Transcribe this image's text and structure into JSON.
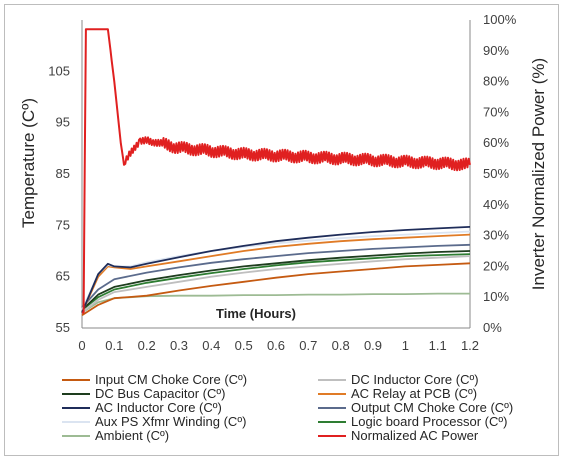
{
  "chart_data": {
    "type": "line",
    "xlabel": "Time (Hours)",
    "ylabel_left": "Temperature (Cº)",
    "ylabel_right": "Inverter Normalized Power (%)",
    "xlim": [
      0,
      1.2
    ],
    "ylim_left": [
      55,
      115
    ],
    "ylim_right": [
      0,
      100
    ],
    "x_ticks": [
      "0",
      "0.1",
      "0.2",
      "0.3",
      "0.4",
      "0.5",
      "0.6",
      "0.7",
      "0.8",
      "0.9",
      "1",
      "1.1",
      "1.2"
    ],
    "y_ticks_left": [
      "55",
      "65",
      "75",
      "85",
      "95",
      "105"
    ],
    "y_ticks_right": [
      "0%",
      "10%",
      "20%",
      "30%",
      "40%",
      "50%",
      "60%",
      "70%",
      "80%",
      "90%",
      "100%"
    ],
    "grid": false,
    "legend_position": "bottom",
    "series": [
      {
        "name": "Input CM Choke Core (Cº)",
        "color": "#c55a11",
        "axis": "left",
        "x": [
          0,
          0.05,
          0.1,
          0.2,
          0.3,
          0.4,
          0.5,
          0.6,
          0.7,
          0.8,
          0.9,
          1.0,
          1.1,
          1.2
        ],
        "y": [
          57.5,
          59.5,
          60.8,
          61.3,
          62.3,
          63.2,
          64.0,
          64.8,
          65.5,
          66.0,
          66.5,
          67.0,
          67.3,
          67.6
        ]
      },
      {
        "name": "DC Inductor Core (Cº)",
        "color": "#bfbfbf",
        "axis": "left",
        "x": [
          0,
          0.05,
          0.1,
          0.2,
          0.3,
          0.4,
          0.5,
          0.6,
          0.7,
          0.8,
          0.9,
          1.0,
          1.1,
          1.2
        ],
        "y": [
          58.0,
          60.5,
          62.0,
          63.0,
          64.0,
          65.0,
          65.8,
          66.5,
          67.0,
          67.5,
          68.0,
          68.4,
          68.7,
          69.0
        ]
      },
      {
        "name": "DC Bus Capacitor (Cº)",
        "color": "#1e3d1e",
        "axis": "left",
        "x": [
          0,
          0.05,
          0.1,
          0.2,
          0.3,
          0.4,
          0.5,
          0.6,
          0.7,
          0.8,
          0.9,
          1.0,
          1.1,
          1.2
        ],
        "y": [
          58.5,
          61.5,
          63.0,
          64.3,
          65.3,
          66.2,
          67.0,
          67.6,
          68.2,
          68.7,
          69.1,
          69.5,
          69.8,
          70.0
        ]
      },
      {
        "name": "AC Relay at PCB (Cº)",
        "color": "#e07b26",
        "axis": "left",
        "x": [
          0,
          0.05,
          0.08,
          0.1,
          0.15,
          0.2,
          0.3,
          0.4,
          0.5,
          0.6,
          0.7,
          0.8,
          0.9,
          1.0,
          1.1,
          1.2
        ],
        "y": [
          58.0,
          65.0,
          67.0,
          66.8,
          66.5,
          67.0,
          68.0,
          69.0,
          70.0,
          70.8,
          71.4,
          71.9,
          72.3,
          72.6,
          72.9,
          73.2
        ]
      },
      {
        "name": "AC Inductor Core (Cº)",
        "color": "#1f2d5a",
        "axis": "left",
        "x": [
          0,
          0.05,
          0.08,
          0.1,
          0.15,
          0.2,
          0.3,
          0.4,
          0.5,
          0.6,
          0.7,
          0.8,
          0.9,
          1.0,
          1.1,
          1.2
        ],
        "y": [
          58.0,
          65.5,
          67.5,
          67.0,
          66.8,
          67.5,
          68.8,
          70.0,
          71.0,
          71.9,
          72.6,
          73.2,
          73.7,
          74.1,
          74.4,
          74.7
        ]
      },
      {
        "name": "Output CM Choke Core (Cº)",
        "color": "#5b6b8c",
        "axis": "left",
        "x": [
          0,
          0.05,
          0.1,
          0.2,
          0.3,
          0.4,
          0.5,
          0.6,
          0.7,
          0.8,
          0.9,
          1.0,
          1.1,
          1.2
        ],
        "y": [
          59.0,
          62.5,
          64.5,
          65.8,
          66.8,
          67.7,
          68.4,
          69.0,
          69.6,
          70.0,
          70.4,
          70.7,
          71.0,
          71.2
        ]
      },
      {
        "name": "Aux PS Xfmr Winding (Cº)",
        "color": "#dbe4f1",
        "axis": "left",
        "x": [
          0,
          0.05,
          0.08,
          0.1,
          0.15,
          0.2,
          0.3,
          0.4,
          0.5,
          0.6,
          0.7,
          0.8,
          0.9,
          1.0,
          1.1,
          1.2
        ],
        "y": [
          58.5,
          65.5,
          67.3,
          67.0,
          67.0,
          67.8,
          69.0,
          70.0,
          70.8,
          71.5,
          72.0,
          72.5,
          72.9,
          73.2,
          73.5,
          73.8
        ]
      },
      {
        "name": "Logic board Processor (Cº)",
        "color": "#2e7d32",
        "axis": "left",
        "x": [
          0,
          0.05,
          0.1,
          0.2,
          0.3,
          0.4,
          0.5,
          0.6,
          0.7,
          0.8,
          0.9,
          1.0,
          1.1,
          1.2
        ],
        "y": [
          58.5,
          61.0,
          62.5,
          63.8,
          64.8,
          65.7,
          66.5,
          67.2,
          67.8,
          68.2,
          68.6,
          69.0,
          69.2,
          69.4
        ]
      },
      {
        "name": "Ambient (Cº)",
        "color": "#9dbb94",
        "axis": "left",
        "x": [
          0,
          0.05,
          0.1,
          0.15,
          0.2,
          0.3,
          0.4,
          0.5,
          0.6,
          0.7,
          0.8,
          0.9,
          1.0,
          1.1,
          1.2
        ],
        "y": [
          58.0,
          60.0,
          60.8,
          61.0,
          61.2,
          61.3,
          61.3,
          61.4,
          61.4,
          61.5,
          61.5,
          61.6,
          61.6,
          61.7,
          61.7
        ]
      },
      {
        "name": "Normalized AC Power",
        "color": "#e02020",
        "axis": "right",
        "noisy": true,
        "x": [
          0,
          0.005,
          0.012,
          0.02,
          0.06,
          0.08,
          0.1,
          0.12,
          0.13,
          0.15,
          0.18,
          0.2,
          0.3,
          0.4,
          0.5,
          0.6,
          0.7,
          0.8,
          0.9,
          1.0,
          1.1,
          1.2
        ],
        "y": [
          5,
          5,
          97,
          97,
          97,
          97,
          80,
          60,
          53,
          57,
          61,
          61,
          58.5,
          57.5,
          56.5,
          56,
          55.5,
          55,
          54.5,
          54,
          53.5,
          53
        ]
      }
    ]
  }
}
